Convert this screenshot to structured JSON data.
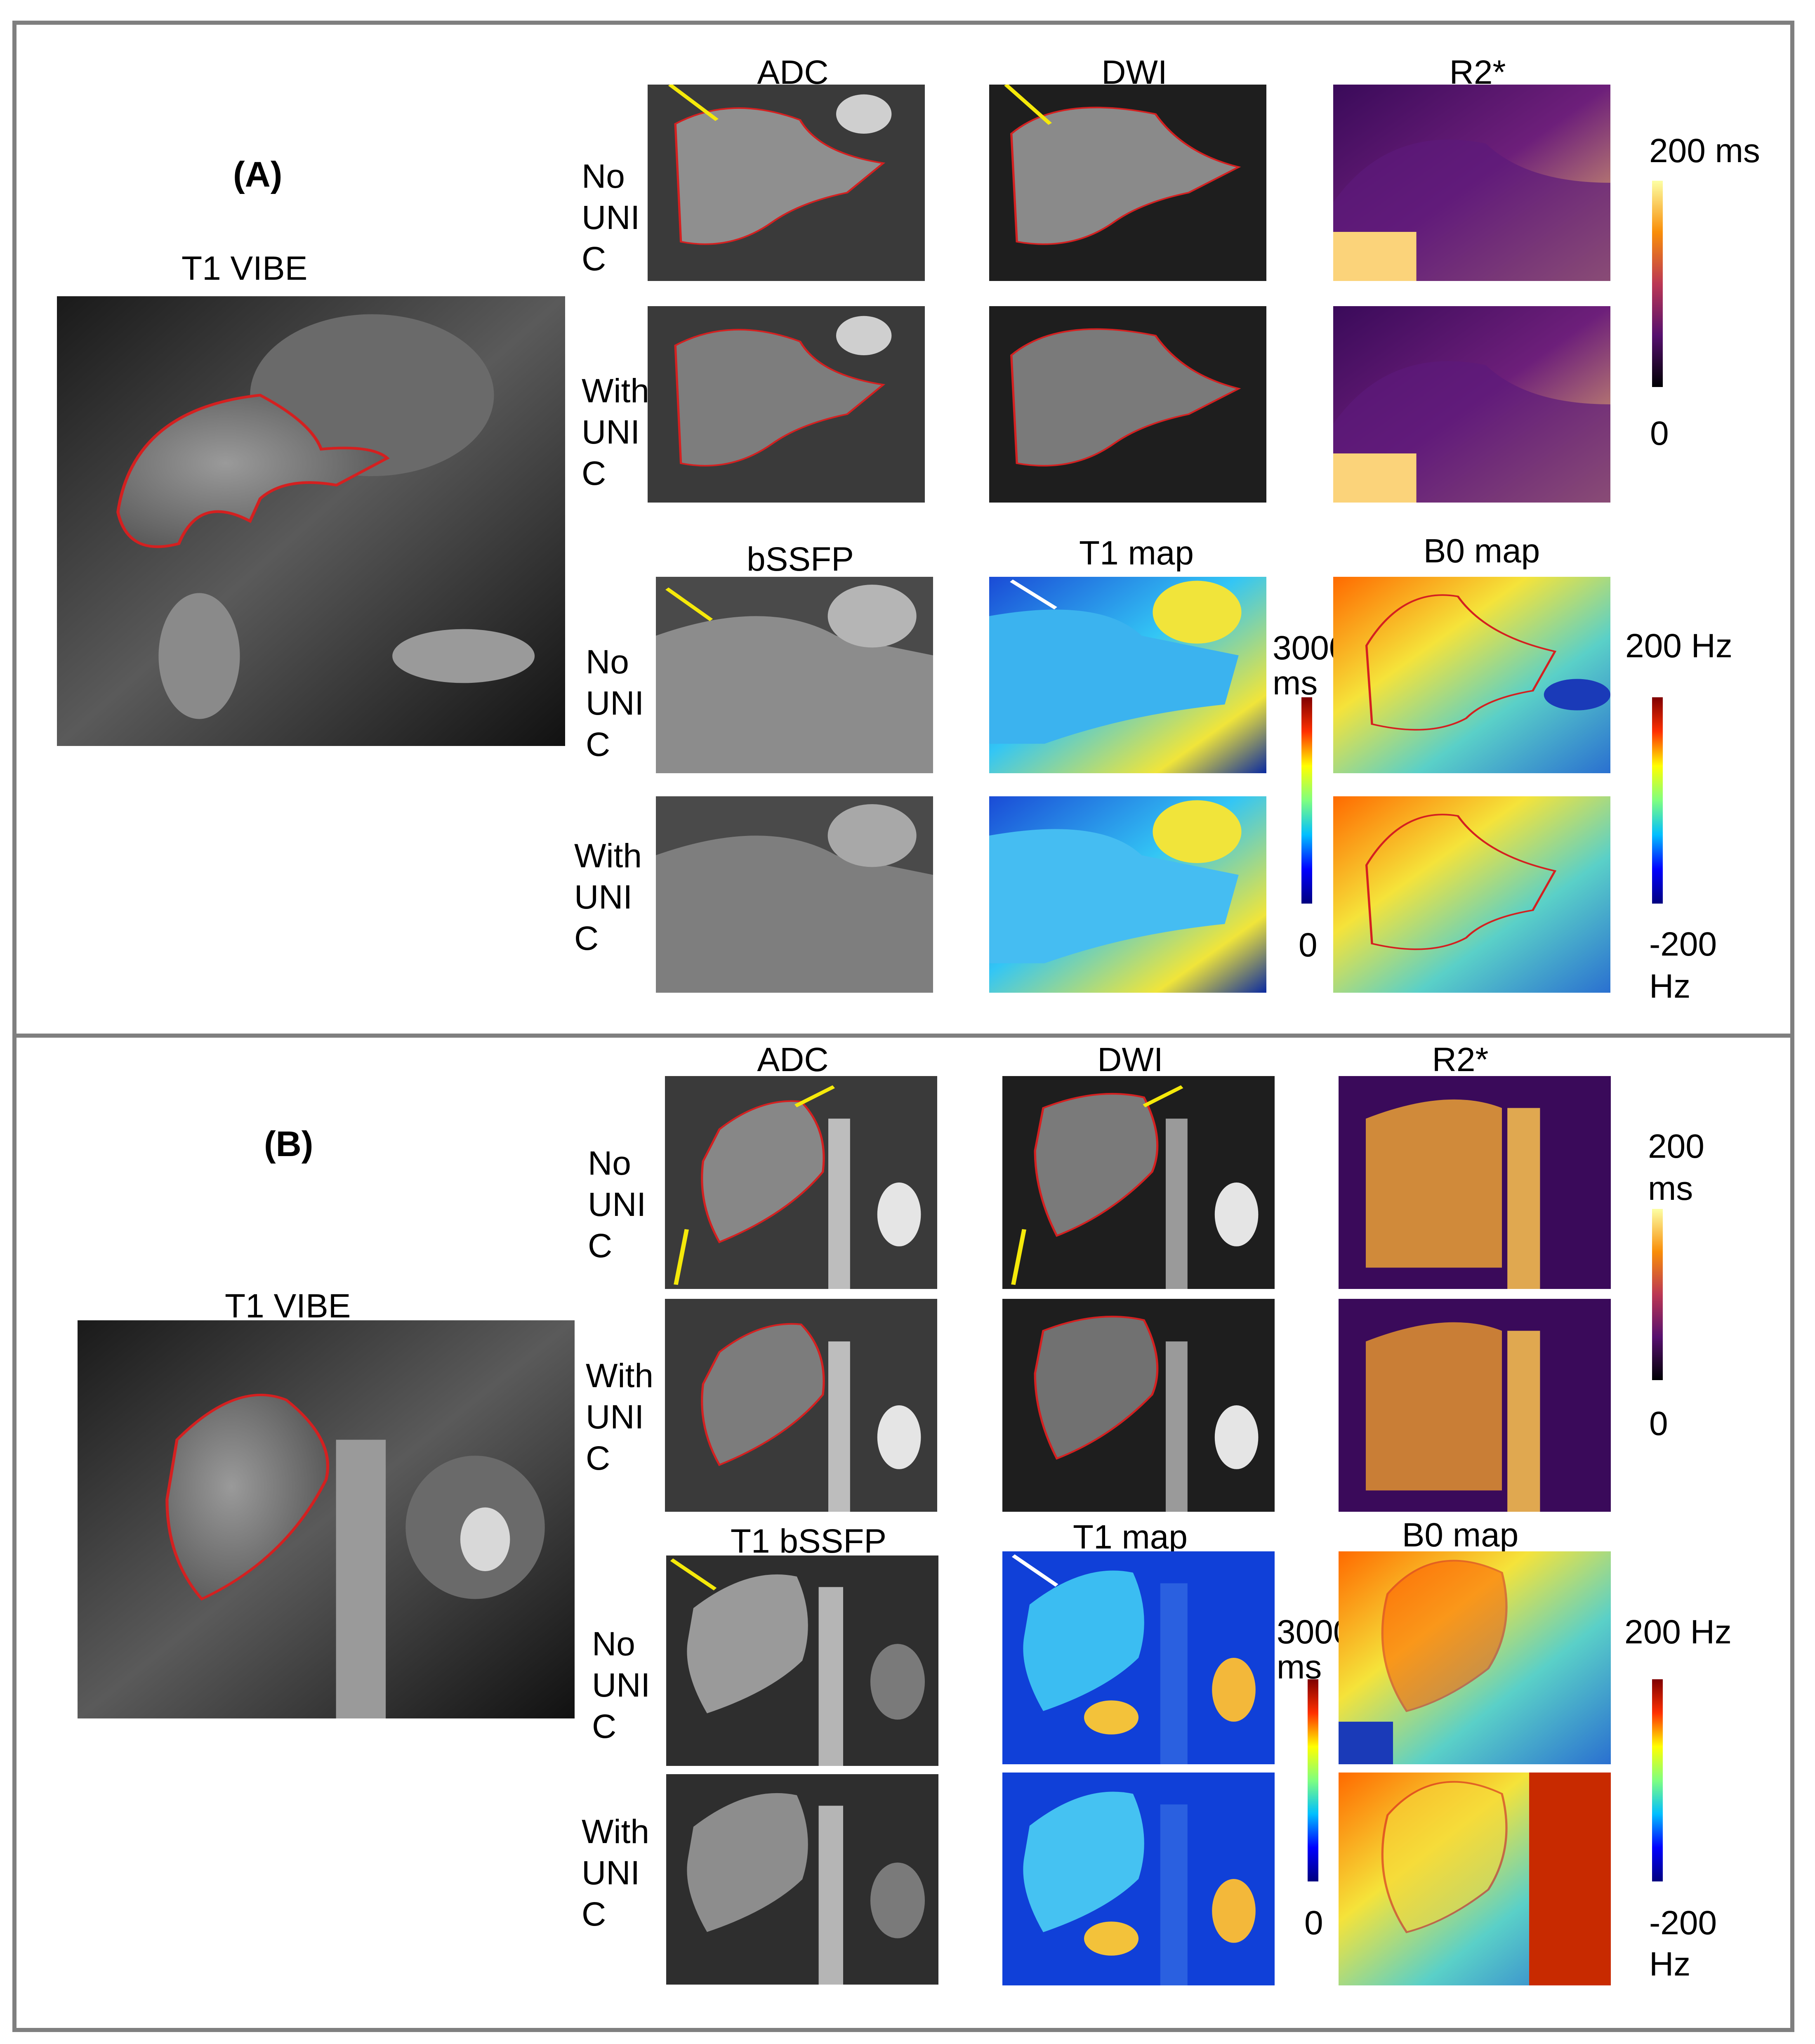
{
  "panelA": {
    "tag": "(A)",
    "vibe_label": "T1 VIBE",
    "col_titles": [
      "ADC",
      "DWI",
      "R2*"
    ],
    "row_top_no": [
      "No",
      "UNI",
      "C"
    ],
    "row_top_with": [
      "With",
      "UNI",
      "C"
    ],
    "bottom_titles": [
      "bSSFP",
      "T1 map",
      "B0 map"
    ],
    "row_bot_no": [
      "No",
      "UNI",
      "C"
    ],
    "row_bot_with": [
      "With",
      "UNI",
      "C"
    ],
    "r2_max": "200 ms",
    "r2_min": "0",
    "t1_max_1": "3000",
    "t1_max_2": "ms",
    "t1_min": "0",
    "b0_max": "200 Hz",
    "b0_min_1": "-200",
    "b0_min_2": "Hz"
  },
  "panelB": {
    "tag": "(B)",
    "vibe_label": "T1 VIBE",
    "col_titles": [
      "ADC",
      "DWI",
      "R2*"
    ],
    "row_top_no": [
      "No",
      "UNI",
      "C"
    ],
    "row_top_with": [
      "With",
      "UNI",
      "C"
    ],
    "bottom_titles": [
      "T1 bSSFP",
      "T1 map",
      "B0 map"
    ],
    "row_bot_no": [
      "No",
      "UNI",
      "C"
    ],
    "row_bot_with": [
      "With",
      "UNI",
      "C"
    ],
    "r2_max_1": "200",
    "r2_max_2": "ms",
    "r2_min": "0",
    "t1_max_1": "3000",
    "t1_max_2": "ms",
    "t1_min": "0",
    "b0_max": "200 Hz",
    "b0_min_1": "-200",
    "b0_min_2": "Hz"
  },
  "colors": {
    "outline": "#d42020",
    "arrow_yellow": "#f5e90a",
    "arrow_white": "#ffffff",
    "border": "#7f7f7f"
  }
}
